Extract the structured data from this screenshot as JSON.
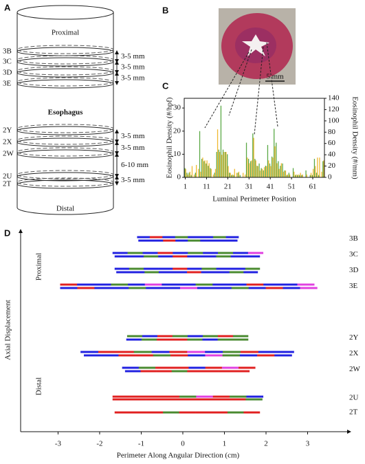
{
  "figure": {
    "panel_a": {
      "label": "A",
      "top": "Proximal",
      "middle": "Esophagus",
      "bottom": "Distal",
      "sections": [
        "3B",
        "3C",
        "3D",
        "3E",
        "2Y",
        "2X",
        "2W",
        "2U",
        "2T"
      ],
      "spacings": [
        "3-5 mm",
        "3-5 mm",
        "3-5 mm",
        "3-5 mm",
        "3-5 mm",
        "6-10 mm",
        "3-5 mm"
      ]
    },
    "panel_b": {
      "label": "B",
      "scale": "5 mm"
    }
  },
  "chart_data": [
    {
      "type": "bar",
      "panel_label": "C",
      "xlabel": "Luminal Perimeter Position",
      "ylabel": "Eosinophil Density (#/hpf)",
      "y2label": "Eosinophil Density (#/mm)",
      "x": [
        1,
        2,
        3,
        4,
        5,
        6,
        7,
        8,
        9,
        10,
        11,
        12,
        13,
        14,
        15,
        16,
        17,
        18,
        19,
        20,
        21,
        22,
        23,
        24,
        25,
        26,
        27,
        28,
        29,
        30,
        31,
        32,
        33,
        34,
        35,
        36,
        37,
        38,
        39,
        40,
        41,
        42,
        43,
        44,
        45,
        46,
        47,
        48,
        49,
        50,
        51,
        52,
        53,
        54,
        55,
        56,
        57,
        58,
        59,
        60,
        61,
        62,
        63,
        64,
        65,
        66
      ],
      "xlim": [
        0.5,
        66.5
      ],
      "xticks": [
        1,
        11,
        21,
        31,
        41,
        51,
        61
      ],
      "ylim": [
        0,
        34.2
      ],
      "yticks": [
        0,
        10,
        20,
        30
      ],
      "y2lim": [
        0,
        140
      ],
      "y2ticks": [
        0,
        20,
        40,
        60,
        80,
        100,
        120,
        140
      ],
      "series": [
        {
          "name": "Eosinophil Density (#/hpf)",
          "color": "#5aa845",
          "values": [
            4,
            2,
            2,
            1,
            0,
            2,
            0,
            20,
            8,
            7,
            6,
            5,
            4,
            0,
            2,
            11,
            12,
            31,
            12,
            11,
            10,
            2,
            1,
            1,
            0,
            2,
            1,
            0,
            0,
            15,
            8,
            7,
            19,
            8,
            5,
            6,
            4,
            3,
            5,
            14,
            6,
            9,
            21,
            15,
            7,
            5,
            6,
            3,
            1,
            2,
            0,
            4,
            1,
            1,
            1,
            1,
            0,
            3,
            0,
            1,
            1,
            8,
            2,
            1,
            0,
            7
          ]
        },
        {
          "name": "Eosinophil Density (#/mm)",
          "color": "#f0b830",
          "axis": "y2",
          "values": [
            15,
            5,
            10,
            20,
            5,
            22,
            15,
            10,
            35,
            30,
            30,
            25,
            15,
            5,
            15,
            85,
            45,
            40,
            45,
            45,
            20,
            8,
            5,
            15,
            8,
            10,
            0,
            8,
            5,
            35,
            25,
            30,
            70,
            30,
            20,
            12,
            15,
            18,
            20,
            30,
            20,
            35,
            55,
            25,
            15,
            25,
            10,
            12,
            5,
            5,
            0,
            10,
            5,
            5,
            8,
            5,
            0,
            5,
            0,
            8,
            15,
            20,
            35,
            35,
            10,
            30
          ]
        }
      ]
    },
    {
      "type": "range",
      "panel_label": "D",
      "xlabel": "Perimeter Along Angular Direction (cm)",
      "ylabel": "Axial Displacement",
      "annotations": [
        "Proximal",
        "Distal"
      ],
      "xlim": [
        -3.9,
        4.0
      ],
      "xticks": [
        -3,
        -2,
        -1,
        0,
        1,
        2,
        3
      ],
      "rows": [
        {
          "label": "3B",
          "strips": [
            {
              "start": -1.1,
              "end": 1.34,
              "colors": [
                "#2020e0",
                "#e02020",
                "#2020e0",
                "#4a8a30",
                "#2020e0",
                "#2020e0",
                "#4a8a30",
                "#2020e0"
              ]
            },
            {
              "start": -1.07,
              "end": 1.31,
              "colors": [
                "#2020e0",
                "#2020e0",
                "#e02020",
                "#2020e0",
                "#4a8a30",
                "#2020e0",
                "#2020e0",
                "#2020e0"
              ]
            }
          ]
        },
        {
          "label": "3C",
          "strips": [
            {
              "start": -1.69,
              "end": 1.93,
              "colors": [
                "#2020e0",
                "#4a8a30",
                "#2020e0",
                "#e02020",
                "#2020e0",
                "#4a8a30",
                "#2020e0",
                "#4a8a30",
                "#2020e0",
                "#e040e0"
              ]
            },
            {
              "start": -1.64,
              "end": 1.85,
              "colors": [
                "#2020e0",
                "#2020e0",
                "#4a8a30",
                "#2020e0",
                "#e02020",
                "#2020e0",
                "#2020e0",
                "#4a8a30",
                "#2020e0",
                "#2020e0"
              ]
            }
          ]
        },
        {
          "label": "3D",
          "strips": [
            {
              "start": -1.64,
              "end": 1.85,
              "colors": [
                "#2020e0",
                "#4a8a30",
                "#2020e0",
                "#2020e0",
                "#e02020",
                "#2020e0",
                "#4a8a30",
                "#2020e0",
                "#2020e0",
                "#4a8a30"
              ]
            },
            {
              "start": -1.6,
              "end": 1.8,
              "colors": [
                "#2020e0",
                "#2020e0",
                "#4a8a30",
                "#2020e0",
                "#2020e0",
                "#e02020",
                "#2020e0",
                "#2020e0",
                "#4a8a30",
                "#2020e0"
              ]
            }
          ]
        },
        {
          "label": "3E",
          "strips": [
            {
              "start": -2.95,
              "end": 3.16,
              "colors": [
                "#e02020",
                "#2020e0",
                "#2020e0",
                "#4a8a30",
                "#2020e0",
                "#e040e0",
                "#2020e0",
                "#2020e0",
                "#4a8a30",
                "#2020e0",
                "#2020e0",
                "#e02020",
                "#2020e0",
                "#2020e0",
                "#e040e0"
              ]
            },
            {
              "start": -2.95,
              "end": 3.23,
              "colors": [
                "#2020e0",
                "#e02020",
                "#2020e0",
                "#2020e0",
                "#4a8a30",
                "#2020e0",
                "#2020e0",
                "#e040e0",
                "#2020e0",
                "#2020e0",
                "#4a8a30",
                "#2020e0",
                "#e02020",
                "#2020e0",
                "#e040e0"
              ]
            }
          ]
        },
        {
          "label": "2Y",
          "strips": [
            {
              "start": -1.34,
              "end": 1.57,
              "colors": [
                "#4a8a30",
                "#2020e0",
                "#e02020",
                "#4a8a30",
                "#2020e0",
                "#4a8a30",
                "#e02020",
                "#4a8a30"
              ]
            },
            {
              "start": -1.36,
              "end": 1.57,
              "colors": [
                "#2020e0",
                "#4a8a30",
                "#e02020",
                "#e02020",
                "#4a8a30",
                "#2020e0",
                "#4a8a30",
                "#4a8a30"
              ]
            }
          ]
        },
        {
          "label": "2X",
          "strips": [
            {
              "start": -2.46,
              "end": 2.67,
              "colors": [
                "#2020e0",
                "#e02020",
                "#e02020",
                "#4a8a30",
                "#2020e0",
                "#e02020",
                "#e040e0",
                "#2020e0",
                "#4a8a30",
                "#e02020",
                "#2020e0",
                "#2020e0"
              ]
            },
            {
              "start": -2.38,
              "end": 2.62,
              "colors": [
                "#2020e0",
                "#2020e0",
                "#e02020",
                "#e02020",
                "#4a8a30",
                "#e02020",
                "#2020e0",
                "#e040e0",
                "#4a8a30",
                "#2020e0",
                "#e02020",
                "#2020e0"
              ]
            }
          ]
        },
        {
          "label": "2W",
          "strips": [
            {
              "start": -1.46,
              "end": 1.74,
              "colors": [
                "#2020e0",
                "#4a8a30",
                "#e02020",
                "#e02020",
                "#2020e0",
                "#e02020",
                "#e040e0",
                "#e02020"
              ]
            },
            {
              "start": -1.39,
              "end": 1.6,
              "colors": [
                "#2020e0",
                "#e02020",
                "#e02020",
                "#4a8a30",
                "#e02020",
                "#e02020",
                "#e02020",
                "#e02020"
              ]
            }
          ]
        },
        {
          "label": "2U",
          "strips": [
            {
              "start": -1.69,
              "end": 1.93,
              "colors": [
                "#e02020",
                "#e02020",
                "#e02020",
                "#e02020",
                "#4a8a30",
                "#e040e0",
                "#e02020",
                "#4a8a30",
                "#2020e0"
              ]
            },
            {
              "start": -1.69,
              "end": 1.91,
              "colors": [
                "#e02020",
                "#e02020",
                "#e02020",
                "#e02020",
                "#e02020",
                "#e02020",
                "#e02020",
                "#e02020",
                "#4a8a30"
              ]
            }
          ]
        },
        {
          "label": "2T",
          "strips": [
            {
              "start": -1.64,
              "end": 1.85,
              "colors": [
                "#e02020",
                "#e02020",
                "#e02020",
                "#4a8a30",
                "#e02020",
                "#e02020",
                "#e02020",
                "#4a8a30",
                "#e02020"
              ]
            }
          ]
        }
      ]
    }
  ]
}
